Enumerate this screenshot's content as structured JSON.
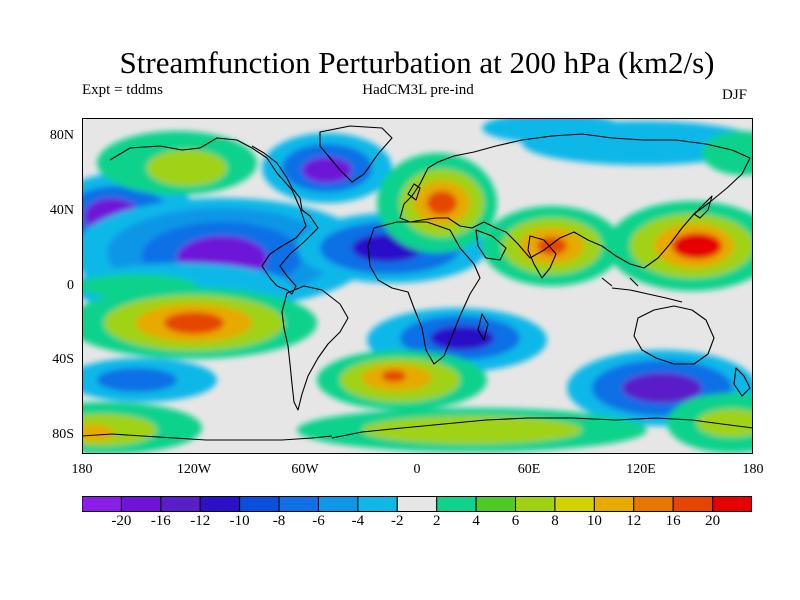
{
  "title": "Streamfunction Perturbation at 200 hPa (km2/s)",
  "subtitle_left": "Expt = tddms",
  "subtitle_center": "HadCM3L pre-ind",
  "subtitle_right": "DJF",
  "lat_labels": [
    "80N",
    "40N",
    "0",
    "40S",
    "80S"
  ],
  "lon_labels": [
    "180",
    "120W",
    "60W",
    "0",
    "60E",
    "120E",
    "180"
  ],
  "colorbar": {
    "colors": [
      "#8a1ee6",
      "#6e14d8",
      "#5a1ec8",
      "#2c10c8",
      "#0a50dc",
      "#1070e6",
      "#1096e6",
      "#10b8e8",
      "#e6e6e6",
      "#10d28c",
      "#50c828",
      "#a0d214",
      "#d2d200",
      "#e6aa00",
      "#e67800",
      "#e64600",
      "#e60000"
    ],
    "labels": [
      "-20",
      "-16",
      "-12",
      "-10",
      "-8",
      "-6",
      "-4",
      "-2",
      "2",
      "4",
      "6",
      "8",
      "10",
      "12",
      "16",
      "20"
    ]
  },
  "colors": {
    "background_field": "#e6e6e6",
    "coastline": "#000000"
  }
}
